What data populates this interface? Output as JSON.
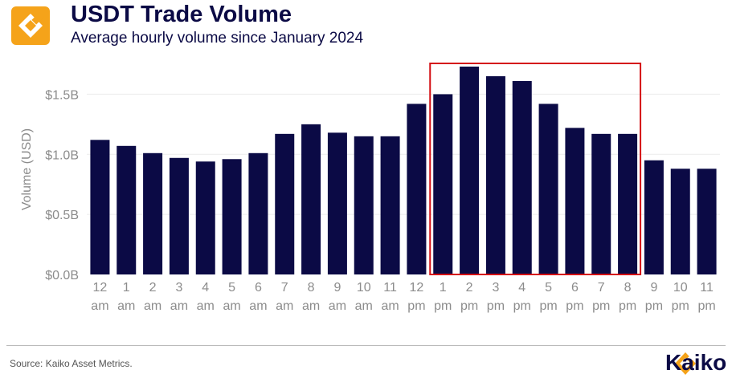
{
  "header": {
    "title": "USDT Trade Volume",
    "subtitle": "Average hourly volume since January 2024"
  },
  "footer": {
    "source": "Source: Kaiko Asset Metrics.",
    "brand": "Kaiko"
  },
  "colors": {
    "bar": "#0b0a45",
    "highlight_box": "#d40f14",
    "axis_text": "#8c8c8c",
    "logo_orange": "#f5a31a"
  },
  "chart_data": {
    "type": "bar",
    "title": "USDT Trade Volume",
    "subtitle": "Average hourly volume since January 2024",
    "ylabel": "Volume (USD)",
    "xlabel": "",
    "ylim": [
      0,
      1.75
    ],
    "yticks": [
      0,
      0.5,
      1.0,
      1.5
    ],
    "ytick_labels": [
      "$0.0B",
      "$0.5B",
      "$1.0B",
      "$1.5B"
    ],
    "grid": true,
    "categories": [
      {
        "hour": "12",
        "period": "am"
      },
      {
        "hour": "1",
        "period": "am"
      },
      {
        "hour": "2",
        "period": "am"
      },
      {
        "hour": "3",
        "period": "am"
      },
      {
        "hour": "4",
        "period": "am"
      },
      {
        "hour": "5",
        "period": "am"
      },
      {
        "hour": "6",
        "period": "am"
      },
      {
        "hour": "7",
        "period": "am"
      },
      {
        "hour": "8",
        "period": "am"
      },
      {
        "hour": "9",
        "period": "am"
      },
      {
        "hour": "10",
        "period": "am"
      },
      {
        "hour": "11",
        "period": "am"
      },
      {
        "hour": "12",
        "period": "pm"
      },
      {
        "hour": "1",
        "period": "pm"
      },
      {
        "hour": "2",
        "period": "pm"
      },
      {
        "hour": "3",
        "period": "pm"
      },
      {
        "hour": "4",
        "period": "pm"
      },
      {
        "hour": "5",
        "period": "pm"
      },
      {
        "hour": "6",
        "period": "pm"
      },
      {
        "hour": "7",
        "period": "pm"
      },
      {
        "hour": "8",
        "period": "pm"
      },
      {
        "hour": "9",
        "period": "pm"
      },
      {
        "hour": "10",
        "period": "pm"
      },
      {
        "hour": "11",
        "period": "pm"
      }
    ],
    "values": [
      1.12,
      1.07,
      1.01,
      0.97,
      0.94,
      0.96,
      1.01,
      1.17,
      1.25,
      1.18,
      1.15,
      1.15,
      1.42,
      1.5,
      1.73,
      1.65,
      1.61,
      1.42,
      1.22,
      1.17,
      1.17,
      0.95,
      0.88,
      0.88
    ],
    "unit": "billion USD",
    "highlight_range": {
      "start_category": "1 pm",
      "end_category": "8 pm"
    }
  }
}
